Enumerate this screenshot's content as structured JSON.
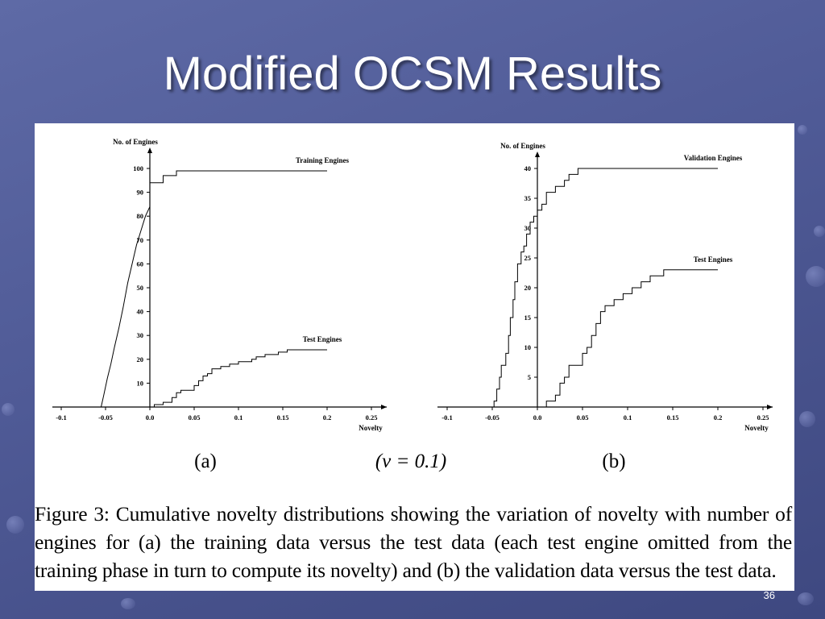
{
  "slide": {
    "title": "Modified OCSM Results",
    "page_number": "36"
  },
  "figure": {
    "panel_a_label": "(a)",
    "nu_label": "(ν = 0.1)",
    "panel_b_label": "(b)",
    "caption": "Figure 3: Cumulative novelty distributions showing the variation of novelty with number of engines for (a) the training data versus the test data (each test engine omitted from the training phase in turn to compute its novelty) and (b) the validation data versus the test data."
  },
  "chart_data": [
    {
      "type": "line",
      "ylabel": "No. of Engines",
      "xlabel": "Novelty",
      "xlim": [
        -0.1,
        0.25
      ],
      "ylim": [
        0,
        100
      ],
      "x_ticks": [
        -0.1,
        -0.05,
        0.0,
        0.05,
        0.1,
        0.15,
        0.2,
        0.25
      ],
      "x_tick_labels": [
        "-0.1",
        "-0.05",
        "0.0",
        "0.05",
        "0.1",
        "0.15",
        "0.2",
        "0.25"
      ],
      "y_ticks": [
        10,
        20,
        30,
        40,
        50,
        60,
        70,
        80,
        90,
        100
      ],
      "y_tick_labels": [
        "10",
        "20",
        "30",
        "40",
        "50",
        "60",
        "70",
        "80",
        "90",
        "100"
      ],
      "series": [
        {
          "name": "Training Engines",
          "points": [
            [
              -0.055,
              0
            ],
            [
              -0.052,
              5
            ],
            [
              -0.048,
              12
            ],
            [
              -0.044,
              18
            ],
            [
              -0.04,
              25
            ],
            [
              -0.035,
              33
            ],
            [
              -0.03,
              42
            ],
            [
              -0.025,
              52
            ],
            [
              -0.02,
              60
            ],
            [
              -0.015,
              68
            ],
            [
              -0.01,
              74
            ],
            [
              -0.005,
              80
            ],
            [
              0.0,
              84
            ],
            [
              0.0,
              94
            ],
            [
              0.015,
              94
            ],
            [
              0.015,
              97
            ],
            [
              0.03,
              97
            ],
            [
              0.03,
              99
            ],
            [
              0.2,
              99
            ]
          ]
        },
        {
          "name": "Test Engines",
          "points": [
            [
              0.005,
              0
            ],
            [
              0.005,
              1
            ],
            [
              0.015,
              1
            ],
            [
              0.015,
              2
            ],
            [
              0.025,
              2
            ],
            [
              0.025,
              4
            ],
            [
              0.03,
              4
            ],
            [
              0.03,
              6
            ],
            [
              0.035,
              6
            ],
            [
              0.035,
              7
            ],
            [
              0.05,
              7
            ],
            [
              0.05,
              9
            ],
            [
              0.055,
              9
            ],
            [
              0.055,
              11
            ],
            [
              0.06,
              11
            ],
            [
              0.06,
              13
            ],
            [
              0.065,
              13
            ],
            [
              0.065,
              14
            ],
            [
              0.07,
              14
            ],
            [
              0.07,
              16
            ],
            [
              0.08,
              16
            ],
            [
              0.08,
              17
            ],
            [
              0.09,
              17
            ],
            [
              0.09,
              18
            ],
            [
              0.1,
              18
            ],
            [
              0.1,
              19
            ],
            [
              0.115,
              19
            ],
            [
              0.115,
              20
            ],
            [
              0.12,
              20
            ],
            [
              0.12,
              21
            ],
            [
              0.13,
              21
            ],
            [
              0.13,
              22
            ],
            [
              0.145,
              22
            ],
            [
              0.145,
              23
            ],
            [
              0.155,
              23
            ],
            [
              0.155,
              24
            ],
            [
              0.2,
              24
            ]
          ]
        }
      ]
    },
    {
      "type": "line",
      "ylabel": "No. of Engines",
      "xlabel": "Novelty",
      "xlim": [
        -0.1,
        0.25
      ],
      "ylim": [
        0,
        40
      ],
      "x_ticks": [
        -0.1,
        -0.05,
        0.0,
        0.05,
        0.1,
        0.15,
        0.2,
        0.25
      ],
      "x_tick_labels": [
        "-0.1",
        "-0.05",
        "0.0",
        "0.05",
        "0.1",
        "0.15",
        "0.2",
        "0.25"
      ],
      "y_ticks": [
        5,
        10,
        15,
        20,
        25,
        30,
        35,
        40
      ],
      "y_tick_labels": [
        "5",
        "10",
        "15",
        "20",
        "25",
        "30",
        "35",
        "40"
      ],
      "series": [
        {
          "name": "Validation Engines",
          "points": [
            [
              -0.048,
              0
            ],
            [
              -0.048,
              1
            ],
            [
              -0.045,
              1
            ],
            [
              -0.045,
              3
            ],
            [
              -0.042,
              3
            ],
            [
              -0.042,
              5
            ],
            [
              -0.04,
              5
            ],
            [
              -0.04,
              7
            ],
            [
              -0.035,
              7
            ],
            [
              -0.035,
              9
            ],
            [
              -0.032,
              9
            ],
            [
              -0.032,
              12
            ],
            [
              -0.03,
              12
            ],
            [
              -0.03,
              15
            ],
            [
              -0.027,
              15
            ],
            [
              -0.027,
              18
            ],
            [
              -0.025,
              18
            ],
            [
              -0.025,
              21
            ],
            [
              -0.022,
              21
            ],
            [
              -0.022,
              24
            ],
            [
              -0.018,
              24
            ],
            [
              -0.018,
              26
            ],
            [
              -0.015,
              26
            ],
            [
              -0.015,
              27
            ],
            [
              -0.012,
              27
            ],
            [
              -0.012,
              29
            ],
            [
              -0.008,
              29
            ],
            [
              -0.008,
              31
            ],
            [
              -0.004,
              31
            ],
            [
              -0.004,
              32
            ],
            [
              0.0,
              32
            ],
            [
              0.0,
              33
            ],
            [
              0.005,
              33
            ],
            [
              0.005,
              34
            ],
            [
              0.01,
              34
            ],
            [
              0.01,
              36
            ],
            [
              0.02,
              36
            ],
            [
              0.02,
              37
            ],
            [
              0.03,
              37
            ],
            [
              0.03,
              38
            ],
            [
              0.035,
              38
            ],
            [
              0.035,
              39
            ],
            [
              0.045,
              39
            ],
            [
              0.045,
              40
            ],
            [
              0.2,
              40
            ]
          ]
        },
        {
          "name": "Test Engines",
          "points": [
            [
              0.01,
              0
            ],
            [
              0.01,
              1
            ],
            [
              0.02,
              1
            ],
            [
              0.02,
              2
            ],
            [
              0.025,
              2
            ],
            [
              0.025,
              4
            ],
            [
              0.03,
              4
            ],
            [
              0.03,
              5
            ],
            [
              0.035,
              5
            ],
            [
              0.035,
              7
            ],
            [
              0.05,
              7
            ],
            [
              0.05,
              9
            ],
            [
              0.055,
              9
            ],
            [
              0.055,
              10
            ],
            [
              0.06,
              10
            ],
            [
              0.06,
              12
            ],
            [
              0.065,
              12
            ],
            [
              0.065,
              14
            ],
            [
              0.07,
              14
            ],
            [
              0.07,
              16
            ],
            [
              0.075,
              16
            ],
            [
              0.075,
              17
            ],
            [
              0.085,
              17
            ],
            [
              0.085,
              18
            ],
            [
              0.095,
              18
            ],
            [
              0.095,
              19
            ],
            [
              0.105,
              19
            ],
            [
              0.105,
              20
            ],
            [
              0.115,
              20
            ],
            [
              0.115,
              21
            ],
            [
              0.125,
              21
            ],
            [
              0.125,
              22
            ],
            [
              0.14,
              22
            ],
            [
              0.14,
              23
            ],
            [
              0.2,
              23
            ]
          ]
        }
      ]
    }
  ]
}
